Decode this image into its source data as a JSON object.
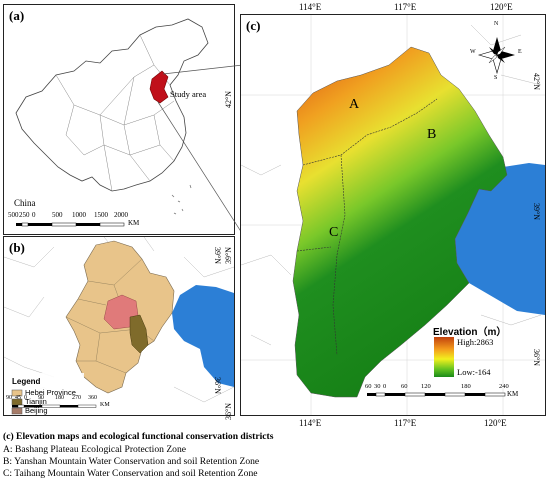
{
  "panel_a": {
    "label": "(a)",
    "study_area_label": "Study area",
    "country_label": "China",
    "scale_ticks": [
      "500",
      "250",
      "0",
      "500",
      "1000",
      "1500",
      "2000"
    ],
    "scale_unit": "KM"
  },
  "panel_b": {
    "label": "(b)",
    "lat_label": "39°N",
    "lat_label2": "36°N",
    "legend": {
      "title": "Legend",
      "items": [
        {
          "label": "Hebei Province",
          "color": "#e8c48a"
        },
        {
          "label": "Tianjin",
          "color": "#7f6b2b"
        },
        {
          "label": "Beijing",
          "color": "#a67b68"
        }
      ]
    },
    "scale_ticks": [
      "90",
      "45",
      "0",
      "90",
      "180",
      "270",
      "360"
    ],
    "scale_unit": "KM"
  },
  "panel_c": {
    "label": "(c)",
    "top_lon": [
      "114°E",
      "117°E",
      "120°E"
    ],
    "bottom_lon": [
      "114°E",
      "117°E",
      "120°E"
    ],
    "left_lat": [
      "42°N",
      "39°N",
      "36°N"
    ],
    "right_lat": [
      "42°N",
      "39°N",
      "36°N"
    ],
    "zones": [
      "A",
      "B",
      "C"
    ],
    "elevation_title": "Elevation（m）",
    "elevation_high": "High:2863",
    "elevation_low": "Low:-164",
    "compass": {
      "n": "N",
      "s": "S",
      "e": "E",
      "w": "W"
    },
    "scale_ticks": [
      "60",
      "30",
      "0",
      "60",
      "120",
      "180",
      "240"
    ],
    "scale_unit": "KM"
  },
  "colors": {
    "hebei": "#e8c48a",
    "tianjin": "#7f6b2b",
    "beijing": "#a67b68",
    "beijing_pink": "#e07a7a",
    "sea": "#2c7fd6",
    "study_red": "#c0101a"
  },
  "caption": {
    "title": "(c) Elevation maps and ecological functional conservation districts",
    "lines": [
      "A: Bashang Plateau Ecological Protection Zone",
      "B: Yanshan Mountain Water Conservation and soil Retention Zone",
      "C: Taihang Mountain Water Conservation and soil Retention Zone"
    ]
  }
}
